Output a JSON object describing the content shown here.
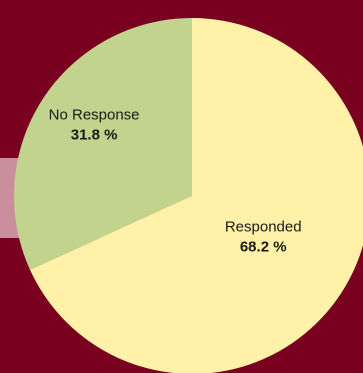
{
  "colors": {
    "background": "#7a0020",
    "band": "#c98f9c",
    "no_response": "#c2d38e",
    "responded": "#fff2a8"
  },
  "chart_data": {
    "type": "pie",
    "title": "",
    "slices": [
      {
        "label": "No Response",
        "value": 31.8,
        "display": "31.8 %",
        "color": "#c2d38e"
      },
      {
        "label": "Responded",
        "value": 68.2,
        "display": "68.2 %",
        "color": "#fff2a8"
      }
    ]
  }
}
